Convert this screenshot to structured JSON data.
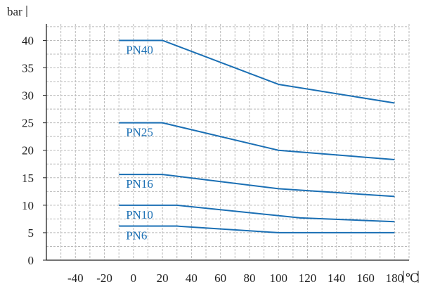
{
  "chart_data": {
    "type": "line",
    "ylabel": "bar",
    "xlabel": "℃",
    "xlim": [
      -60,
      190
    ],
    "ylim": [
      0,
      43
    ],
    "xticks": [
      -40,
      -20,
      0,
      20,
      40,
      60,
      80,
      100,
      120,
      140,
      160,
      180
    ],
    "yticks": [
      0,
      5,
      10,
      15,
      20,
      25,
      30,
      35,
      40
    ],
    "grid": true,
    "line_color": "#1a6fb4",
    "series": [
      {
        "name": "PN40",
        "x": [
          -10,
          20,
          100,
          180
        ],
        "y": [
          40,
          40,
          32,
          28.6
        ]
      },
      {
        "name": "PN25",
        "x": [
          -10,
          20,
          100,
          180
        ],
        "y": [
          25,
          25,
          20,
          18.3
        ]
      },
      {
        "name": "PN16",
        "x": [
          -10,
          20,
          100,
          180
        ],
        "y": [
          15.6,
          15.6,
          13,
          11.6
        ]
      },
      {
        "name": "PN10",
        "x": [
          -10,
          30,
          115,
          180
        ],
        "y": [
          10,
          10,
          7.7,
          7
        ]
      },
      {
        "name": "PN6",
        "x": [
          -10,
          30,
          100,
          180
        ],
        "y": [
          6.2,
          6.2,
          5,
          5
        ]
      }
    ]
  }
}
